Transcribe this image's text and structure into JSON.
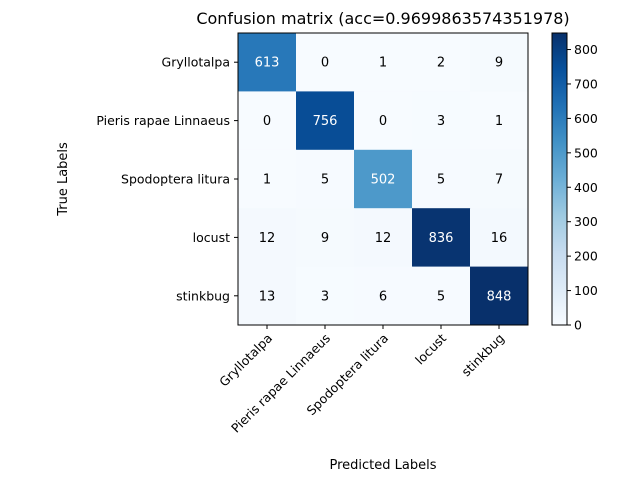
{
  "chart_data": {
    "type": "heatmap",
    "title": "Confusion matrix (acc=0.9699863574351978)",
    "xlabel": "Predicted Labels",
    "ylabel": "True Labels",
    "categories": [
      "Gryllotalpa",
      "Pieris rapae Linnaeus",
      "Spodoptera litura",
      "locust",
      "stinkbug"
    ],
    "matrix": [
      [
        613,
        0,
        1,
        2,
        9
      ],
      [
        0,
        756,
        0,
        3,
        1
      ],
      [
        1,
        5,
        502,
        5,
        7
      ],
      [
        12,
        9,
        12,
        836,
        16
      ],
      [
        13,
        3,
        6,
        5,
        848
      ]
    ],
    "colorscale": "Blues",
    "vmin": 0,
    "vmax": 848,
    "colorbar_ticks": [
      0,
      100,
      200,
      300,
      400,
      500,
      600,
      700,
      800
    ]
  }
}
